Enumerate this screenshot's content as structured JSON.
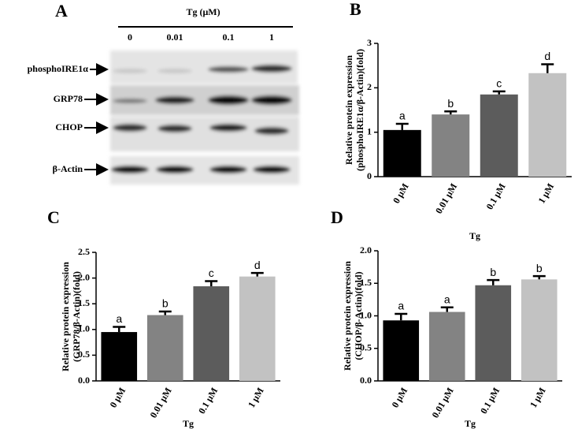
{
  "panel_a": {
    "letter": "A",
    "treatment": "Tg (μM)",
    "lanes": [
      "0",
      "0.01",
      "0.1",
      "1"
    ],
    "rows": [
      "phosphoIRE1α",
      "GRP78",
      "CHOP",
      "β-Actin"
    ]
  },
  "chart_data": [
    {
      "type": "bar",
      "title": "B",
      "y_label": [
        "Relative protein expression",
        "(phosphoIRE1α/β-Actin)(fold)"
      ],
      "x_label": "Tg",
      "categories": [
        "0 μM",
        "0.01 μM",
        "0.1 μM",
        "1 μM"
      ],
      "values": [
        1.05,
        1.4,
        1.85,
        2.33
      ],
      "errors": [
        0.14,
        0.07,
        0.07,
        0.2
      ],
      "annotations": [
        "a",
        "b",
        "c",
        "d"
      ],
      "colors": [
        "#000000",
        "#838383",
        "#5c5c5c",
        "#c2c2c2"
      ],
      "ylim": [
        0,
        3
      ],
      "yticks": [
        0,
        1,
        2,
        3
      ]
    },
    {
      "type": "bar",
      "title": "C",
      "y_label": [
        "Relative protein expression",
        "(GRP78/β-Actin)(fold)"
      ],
      "x_label": "Tg",
      "categories": [
        "0 μM",
        "0.01 μM",
        "0.1 μM",
        "1 μM"
      ],
      "values": [
        0.95,
        1.28,
        1.84,
        2.03
      ],
      "errors": [
        0.1,
        0.07,
        0.1,
        0.07
      ],
      "annotations": [
        "a",
        "b",
        "c",
        "d"
      ],
      "colors": [
        "#000000",
        "#838383",
        "#5c5c5c",
        "#c2c2c2"
      ],
      "ylim": [
        0,
        2.5
      ],
      "yticks": [
        {
          "value": 0,
          "label": "0.0"
        },
        0.5,
        {
          "value": 1,
          "label": "1.0"
        },
        1.5,
        {
          "value": 2,
          "label": "2.0"
        },
        2.5
      ]
    },
    {
      "type": "bar",
      "title": "D",
      "y_label": [
        "Relative protein expression",
        "(CHOP/β-Actin)(fold)"
      ],
      "x_label": "Tg",
      "categories": [
        "0 μM",
        "0.01 μM",
        "0.1 μM",
        "1 μM"
      ],
      "values": [
        0.93,
        1.06,
        1.47,
        1.56
      ],
      "errors": [
        0.1,
        0.07,
        0.08,
        0.05
      ],
      "annotations": [
        "a",
        "a",
        "b",
        "b"
      ],
      "colors": [
        "#000000",
        "#838383",
        "#5c5c5c",
        "#c2c2c2"
      ],
      "ylim": [
        0,
        2
      ],
      "yticks": [
        {
          "value": 0,
          "label": "0.0"
        },
        0.5,
        {
          "value": 1,
          "label": "1.0"
        },
        1.5,
        {
          "value": 2,
          "label": "2.0"
        }
      ]
    }
  ]
}
